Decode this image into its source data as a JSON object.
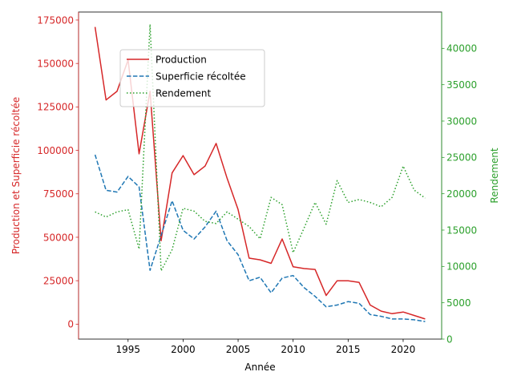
{
  "chart_data": {
    "type": "line",
    "title": "",
    "xlabel": "Année",
    "ylabel_left": "Production et Superficie récoltée",
    "ylabel_right": "Rendement",
    "left_axis_color": "#d62728",
    "right_axis_color": "#2ca02c",
    "xlim": [
      1990.5,
      2023.5
    ],
    "ylim_left": [
      -8600,
      179600
    ],
    "ylim_right": [
      0,
      45000
    ],
    "x_ticks": [
      1995,
      2000,
      2005,
      2010,
      2015,
      2020
    ],
    "y_ticks_left": [
      0,
      25000,
      50000,
      75000,
      100000,
      125000,
      150000,
      175000
    ],
    "y_ticks_right": [
      0,
      5000,
      10000,
      15000,
      20000,
      25000,
      30000,
      35000,
      40000
    ],
    "legend_position": "upper-left",
    "grid": false,
    "x": [
      1992,
      1993,
      1994,
      1995,
      1996,
      1997,
      1998,
      1999,
      2000,
      2001,
      2002,
      2003,
      2004,
      2005,
      2006,
      2007,
      2008,
      2009,
      2010,
      2011,
      2012,
      2013,
      2014,
      2015,
      2016,
      2017,
      2018,
      2019,
      2020,
      2021,
      2022
    ],
    "series": [
      {
        "name": "Production",
        "axis": "left",
        "color": "#d62728",
        "style": "solid",
        "values": [
          171000,
          129000,
          134000,
          152000,
          98000,
          134000,
          48000,
          87000,
          97000,
          86000,
          91000,
          104000,
          84000,
          66000,
          38000,
          37000,
          35000,
          49000,
          33000,
          32000,
          31500,
          16500,
          25000,
          25000,
          24000,
          11000,
          7500,
          6000,
          7000,
          5000,
          3000
        ]
      },
      {
        "name": "Superficie récoltée",
        "axis": "left",
        "color": "#1f77b4",
        "style": "dashed",
        "values": [
          97500,
          77000,
          76000,
          85000,
          79000,
          31000,
          51000,
          71000,
          54000,
          49000,
          56000,
          65000,
          48000,
          40000,
          25000,
          27000,
          18000,
          26500,
          28000,
          21000,
          16000,
          10000,
          11000,
          13000,
          12000,
          5500,
          4500,
          3000,
          3000,
          2500,
          1500
        ]
      },
      {
        "name": "Rendement",
        "axis": "right",
        "color": "#2ca02c",
        "style": "dotted",
        "values": [
          17500,
          16800,
          17500,
          17800,
          12400,
          43300,
          9400,
          12300,
          18000,
          17600,
          16200,
          15900,
          17500,
          16500,
          15500,
          13800,
          19500,
          18500,
          11900,
          15300,
          18800,
          15800,
          21800,
          18800,
          19200,
          18800,
          18200,
          19500,
          23800,
          20500,
          19400
        ]
      }
    ]
  }
}
